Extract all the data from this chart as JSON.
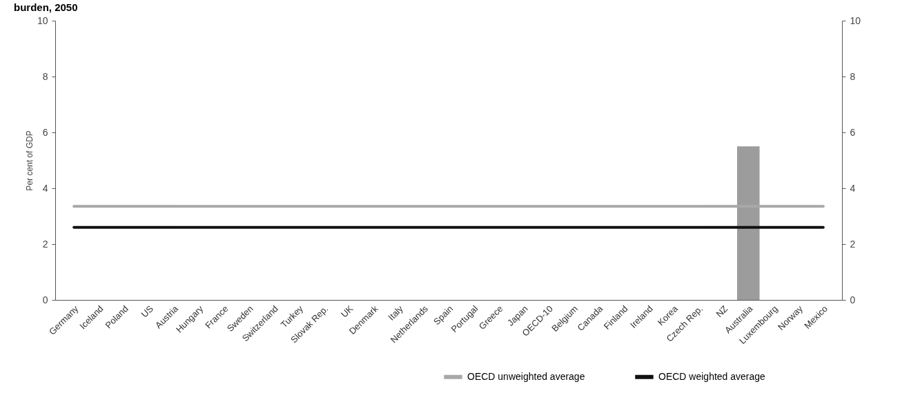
{
  "chart_data": {
    "type": "bar",
    "title": "burden, 2050",
    "ylabel": "Per cent of GDP",
    "categories": [
      "Germany",
      "Iceland",
      "Poland",
      "US",
      "Austria",
      "Hungary",
      "France",
      "Sweden",
      "Switzerland",
      "Turkey",
      "Slovak Rep.",
      "UK",
      "Denmark",
      "Italy",
      "Netherlands",
      "Spain",
      "Portugal",
      "Greece",
      "Japan",
      "OECD-10",
      "Belgium",
      "Canada",
      "Finland",
      "Ireland",
      "Korea",
      "Czech Rep.",
      "NZ",
      "Australia",
      "Luxembourg",
      "Norway",
      "Mexico"
    ],
    "series": [
      {
        "color": "#9c9c9c",
        "values": [
          null,
          null,
          null,
          null,
          null,
          null,
          null,
          null,
          null,
          null,
          null,
          null,
          null,
          null,
          null,
          null,
          null,
          null,
          null,
          null,
          null,
          null,
          null,
          null,
          null,
          null,
          null,
          5.5,
          null,
          null,
          null
        ]
      },
      {
        "type": "line",
        "name": "OECD unweighted average",
        "color": "#a8a8a8",
        "values": [
          3.35,
          3.35,
          3.35,
          3.35,
          3.35,
          3.35,
          3.35,
          3.35,
          3.35,
          3.35,
          3.35,
          3.35,
          3.35,
          3.35,
          3.35,
          3.35,
          3.35,
          3.35,
          3.35,
          3.35,
          3.35,
          3.35,
          3.35,
          3.35,
          3.35,
          3.35,
          3.35,
          3.35,
          3.35,
          3.35,
          3.35
        ]
      },
      {
        "type": "line",
        "name": "OECD weighted average",
        "color": "#111111",
        "values": [
          2.6,
          2.6,
          2.6,
          2.6,
          2.6,
          2.6,
          2.6,
          2.6,
          2.6,
          2.6,
          2.6,
          2.6,
          2.6,
          2.6,
          2.6,
          2.6,
          2.6,
          2.6,
          2.6,
          2.6,
          2.6,
          2.6,
          2.6,
          2.6,
          2.6,
          2.6,
          2.6,
          2.6,
          2.6,
          2.6,
          2.6
        ]
      }
    ],
    "ylim": [
      0,
      10
    ],
    "yticks": [
      0,
      2,
      4,
      6,
      8,
      10
    ],
    "y2lim": [
      0,
      10
    ],
    "y2ticks": [
      0,
      2,
      4,
      6,
      8,
      10
    ],
    "legend": "bottom right",
    "grid": false
  }
}
